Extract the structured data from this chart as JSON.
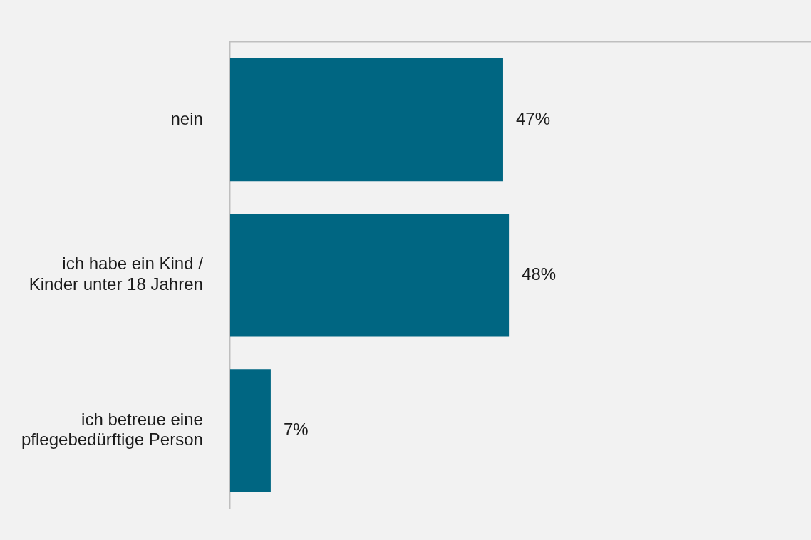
{
  "chart_data": {
    "type": "bar",
    "orientation": "horizontal",
    "categories": [
      "nein",
      "ich habe ein Kind / Kinder unter 18 Jahren",
      "ich betreue eine pflegebedürftige Person"
    ],
    "values": [
      47,
      48,
      7
    ],
    "color": "#006682",
    "value_labels": [
      "47%",
      "48%",
      "7%"
    ],
    "xlim": [
      0,
      100
    ],
    "grid": false,
    "legend": false,
    "tick_labels": "y"
  }
}
